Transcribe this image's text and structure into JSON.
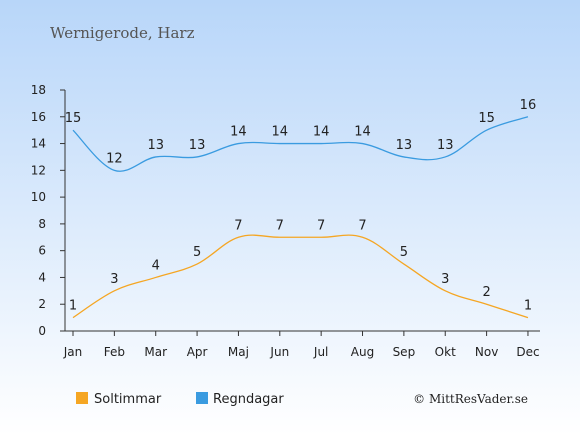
{
  "chart_data": {
    "type": "line",
    "title": "Wernigerode, Harz",
    "categories": [
      "Jan",
      "Feb",
      "Mar",
      "Apr",
      "Maj",
      "Jun",
      "Jul",
      "Aug",
      "Sep",
      "Okt",
      "Nov",
      "Dec"
    ],
    "series": [
      {
        "name": "Soltimmar",
        "color": "#f5a623",
        "values": [
          1,
          3,
          4,
          5,
          7,
          7,
          7,
          7,
          5,
          3,
          2,
          1
        ]
      },
      {
        "name": "Regndagar",
        "color": "#3a9be0",
        "values": [
          15,
          12,
          13,
          13,
          14,
          14,
          14,
          14,
          13,
          13,
          15,
          16
        ]
      }
    ],
    "y_ticks": [
      0,
      2,
      4,
      6,
      8,
      10,
      12,
      14,
      16,
      18
    ],
    "ylim": [
      0,
      18
    ],
    "grid": false,
    "legend_position": "bottom-left"
  },
  "copyright": "© MittResVader.se"
}
